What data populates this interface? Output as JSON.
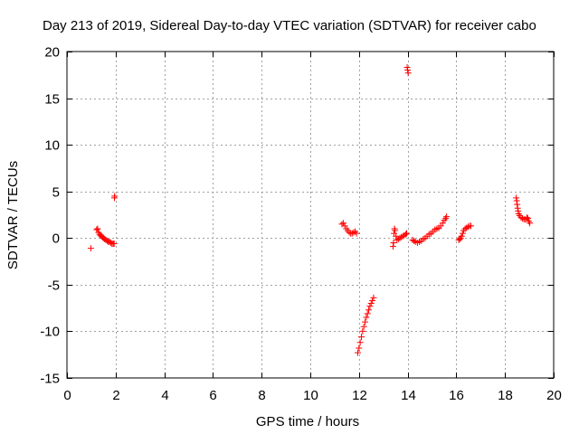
{
  "chart_data": {
    "type": "scatter",
    "title": "Day 213 of 2019, Sidereal Day-to-day VTEC variation (SDTVAR) for receiver cabo",
    "xlabel": "GPS time / hours",
    "ylabel": "SDTVAR / TECUs",
    "xlim": [
      0,
      20
    ],
    "ylim": [
      -15,
      20
    ],
    "xticks": [
      0,
      2,
      4,
      6,
      8,
      10,
      12,
      14,
      16,
      18,
      20
    ],
    "yticks": [
      -15,
      -10,
      -5,
      0,
      5,
      10,
      15,
      20
    ],
    "xtick_labels": [
      "0",
      "2",
      "4",
      "6",
      "8",
      "10",
      "12",
      "14",
      "16",
      "18",
      "20"
    ],
    "ytick_labels": [
      "-15",
      "-10",
      "-5",
      "0",
      "5",
      "10",
      "15",
      "20"
    ],
    "grid": true,
    "marker": "plus",
    "color": "#ff0000",
    "points": [
      [
        0.98,
        -1.1
      ],
      [
        1.22,
        0.9
      ],
      [
        1.26,
        1.0
      ],
      [
        1.3,
        0.6
      ],
      [
        1.34,
        0.4
      ],
      [
        1.38,
        0.3
      ],
      [
        1.42,
        0.2
      ],
      [
        1.46,
        0.1
      ],
      [
        1.5,
        0.0
      ],
      [
        1.55,
        -0.1
      ],
      [
        1.6,
        -0.2
      ],
      [
        1.65,
        -0.3
      ],
      [
        1.7,
        -0.4
      ],
      [
        1.75,
        -0.4
      ],
      [
        1.8,
        -0.5
      ],
      [
        1.85,
        -0.6
      ],
      [
        1.9,
        -0.6
      ],
      [
        1.94,
        -0.6
      ],
      [
        1.95,
        4.3
      ],
      [
        1.96,
        4.5
      ],
      [
        11.3,
        1.5
      ],
      [
        11.36,
        1.6
      ],
      [
        11.42,
        1.3
      ],
      [
        11.48,
        1.0
      ],
      [
        11.54,
        0.8
      ],
      [
        11.6,
        0.6
      ],
      [
        11.66,
        0.5
      ],
      [
        11.72,
        0.5
      ],
      [
        11.78,
        0.6
      ],
      [
        11.84,
        0.7
      ],
      [
        11.9,
        0.5
      ],
      [
        11.95,
        -12.3
      ],
      [
        12.0,
        -11.8
      ],
      [
        12.05,
        -11.2
      ],
      [
        12.1,
        -10.6
      ],
      [
        12.15,
        -10.0
      ],
      [
        12.2,
        -9.5
      ],
      [
        12.25,
        -9.0
      ],
      [
        12.3,
        -8.5
      ],
      [
        12.35,
        -8.1
      ],
      [
        12.4,
        -7.7
      ],
      [
        12.45,
        -7.3
      ],
      [
        12.5,
        -7.0
      ],
      [
        12.55,
        -6.7
      ],
      [
        12.6,
        -6.4
      ],
      [
        13.4,
        -0.9
      ],
      [
        13.42,
        -0.5
      ],
      [
        13.44,
        0.5
      ],
      [
        13.46,
        1.0
      ],
      [
        13.48,
        0.8
      ],
      [
        13.52,
        0.2
      ],
      [
        13.56,
        -0.2
      ],
      [
        13.62,
        -0.1
      ],
      [
        13.68,
        0.0
      ],
      [
        13.74,
        0.1
      ],
      [
        13.8,
        0.2
      ],
      [
        13.86,
        0.3
      ],
      [
        13.92,
        0.4
      ],
      [
        13.96,
        0.5
      ],
      [
        13.98,
        18.3
      ],
      [
        14.0,
        18.0
      ],
      [
        14.02,
        17.7
      ],
      [
        14.2,
        -0.2
      ],
      [
        14.26,
        -0.3
      ],
      [
        14.32,
        -0.4
      ],
      [
        14.4,
        -0.5
      ],
      [
        14.48,
        -0.4
      ],
      [
        14.56,
        -0.3
      ],
      [
        14.64,
        -0.1
      ],
      [
        14.72,
        0.0
      ],
      [
        14.8,
        0.2
      ],
      [
        14.88,
        0.4
      ],
      [
        14.96,
        0.5
      ],
      [
        15.04,
        0.7
      ],
      [
        15.12,
        0.9
      ],
      [
        15.2,
        1.0
      ],
      [
        15.28,
        1.1
      ],
      [
        15.36,
        1.3
      ],
      [
        15.44,
        1.6
      ],
      [
        15.5,
        1.9
      ],
      [
        15.56,
        2.1
      ],
      [
        15.6,
        2.3
      ],
      [
        16.1,
        -0.2
      ],
      [
        16.14,
        -0.1
      ],
      [
        16.18,
        0.0
      ],
      [
        16.22,
        0.2
      ],
      [
        16.26,
        0.5
      ],
      [
        16.3,
        0.8
      ],
      [
        16.36,
        1.0
      ],
      [
        16.42,
        1.1
      ],
      [
        16.48,
        1.2
      ],
      [
        16.54,
        1.3
      ],
      [
        16.6,
        1.3
      ],
      [
        18.46,
        4.3
      ],
      [
        18.48,
        4.0
      ],
      [
        18.5,
        3.6
      ],
      [
        18.52,
        3.2
      ],
      [
        18.54,
        2.9
      ],
      [
        18.56,
        2.6
      ],
      [
        18.6,
        2.4
      ],
      [
        18.66,
        2.2
      ],
      [
        18.72,
        2.1
      ],
      [
        18.78,
        2.0
      ],
      [
        18.84,
        2.0
      ],
      [
        18.9,
        2.2
      ],
      [
        18.94,
        2.1
      ],
      [
        18.98,
        1.8
      ],
      [
        19.02,
        1.6
      ]
    ]
  }
}
